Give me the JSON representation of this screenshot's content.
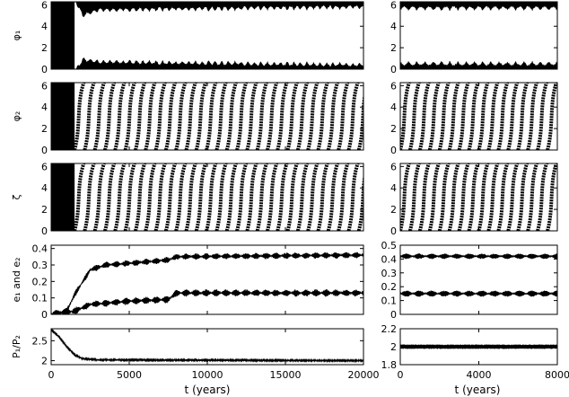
{
  "figure": {
    "xlabel_left": "t (years)",
    "xlabel_right": "t (years)"
  },
  "chart_data": [
    {
      "type": "scatter",
      "panel": "left",
      "row": 0,
      "ylabel": "φ₁",
      "xlim": [
        0,
        20000
      ],
      "ylim": [
        0,
        6.28
      ],
      "yticks": [
        "0",
        "2",
        "4",
        "6"
      ],
      "ytick_values": [
        0,
        2,
        4,
        6
      ],
      "xticks": [],
      "xtick_values": [],
      "pattern": "phi1",
      "description_points": [
        {
          "t": 0,
          "lower": 0.0,
          "upper": 6.28
        },
        {
          "t": 1500,
          "lower": 0.0,
          "upper": 6.28
        },
        {
          "t": 2000,
          "lower": 1.2,
          "upper": 4.7
        },
        {
          "t": 3000,
          "lower": 1.0,
          "upper": 5.2
        },
        {
          "t": 7500,
          "lower": 0.9,
          "upper": 5.3
        },
        {
          "t": 20000,
          "lower": 0.7,
          "upper": 5.5
        }
      ]
    },
    {
      "type": "scatter",
      "panel": "left",
      "row": 1,
      "ylabel": "φ₂",
      "xlim": [
        0,
        20000
      ],
      "ylim": [
        0,
        6.28
      ],
      "yticks": [
        "0",
        "2",
        "4",
        "6"
      ],
      "ytick_values": [
        0,
        2,
        4,
        6
      ],
      "xticks": [],
      "xtick_values": [],
      "pattern": "circulating",
      "circulation_period_years": 650
    },
    {
      "type": "scatter",
      "panel": "left",
      "row": 2,
      "ylabel": "ζ",
      "xlim": [
        0,
        20000
      ],
      "ylim": [
        0,
        6.28
      ],
      "yticks": [
        "0",
        "2",
        "4",
        "6"
      ],
      "ytick_values": [
        0,
        2,
        4,
        6
      ],
      "xticks": [],
      "xtick_values": [],
      "pattern": "circulating",
      "circulation_period_years": 650
    },
    {
      "type": "line",
      "panel": "left",
      "row": 3,
      "ylabel": "e₁ and e₂",
      "xlim": [
        0,
        20000
      ],
      "ylim": [
        0,
        0.42
      ],
      "yticks": [
        "0",
        "0.1",
        "0.2",
        "0.3",
        "0.4"
      ],
      "ytick_values": [
        0,
        0.1,
        0.2,
        0.3,
        0.4
      ],
      "xticks": [],
      "xtick_values": [],
      "series": [
        {
          "name": "",
          "x": [
            0,
            1000,
            1500,
            2500,
            3500,
            5000,
            7500,
            8000,
            20000
          ],
          "y": [
            0.0,
            0.02,
            0.12,
            0.27,
            0.3,
            0.31,
            0.33,
            0.35,
            0.36
          ],
          "osc_amp": 0.04
        },
        {
          "name": "",
          "x": [
            0,
            1500,
            2500,
            5000,
            7500,
            8000,
            20000
          ],
          "y": [
            0.0,
            0.02,
            0.06,
            0.08,
            0.09,
            0.13,
            0.13
          ],
          "osc_amp": 0.045
        }
      ]
    },
    {
      "type": "line",
      "panel": "left",
      "row": 4,
      "ylabel": "P₁/P₂",
      "xlim": [
        0,
        20000
      ],
      "ylim": [
        1.9,
        2.8
      ],
      "yticks": [
        "2",
        "2.5"
      ],
      "ytick_values": [
        2,
        2.5
      ],
      "xticks": [
        "0",
        "5000",
        "10000",
        "15000",
        "20000"
      ],
      "xtick_values": [
        0,
        5000,
        10000,
        15000,
        20000
      ],
      "series": [
        {
          "name": "",
          "x": [
            0,
            500,
            1000,
            1500,
            2000,
            3000,
            20000
          ],
          "y": [
            2.78,
            2.6,
            2.35,
            2.15,
            2.05,
            2.02,
            2.0
          ],
          "osc_amp": 0.04
        }
      ]
    },
    {
      "type": "scatter",
      "panel": "right",
      "row": 0,
      "ylabel": "",
      "xlim": [
        0,
        8000
      ],
      "ylim": [
        0,
        6.28
      ],
      "yticks": [
        "0",
        "2",
        "4",
        "6"
      ],
      "ytick_values": [
        0,
        2,
        4,
        6
      ],
      "xticks": [],
      "xtick_values": [],
      "pattern": "phi1",
      "description_points": [
        {
          "t": 0,
          "lower": 0.8,
          "upper": 5.4
        },
        {
          "t": 8000,
          "lower": 0.8,
          "upper": 5.4
        }
      ]
    },
    {
      "type": "scatter",
      "panel": "right",
      "row": 1,
      "ylabel": "",
      "xlim": [
        0,
        8000
      ],
      "ylim": [
        0,
        6.28
      ],
      "yticks": [
        "0",
        "2",
        "4",
        "6"
      ],
      "ytick_values": [
        0,
        2,
        4,
        6
      ],
      "xticks": [],
      "xtick_values": [],
      "pattern": "circulating",
      "circulation_period_years": 500
    },
    {
      "type": "scatter",
      "panel": "right",
      "row": 2,
      "ylabel": "",
      "xlim": [
        0,
        8000
      ],
      "ylim": [
        0,
        6.28
      ],
      "yticks": [
        "0",
        "2",
        "4",
        "6"
      ],
      "ytick_values": [
        0,
        2,
        4,
        6
      ],
      "xticks": [],
      "xtick_values": [],
      "pattern": "circulating",
      "circulation_period_years": 500
    },
    {
      "type": "line",
      "panel": "right",
      "row": 3,
      "ylabel": "",
      "xlim": [
        0,
        8000
      ],
      "ylim": [
        0,
        0.5
      ],
      "yticks": [
        "0",
        "0.1",
        "0.2",
        "0.3",
        "0.4",
        "0.5"
      ],
      "ytick_values": [
        0,
        0.1,
        0.2,
        0.3,
        0.4,
        0.5
      ],
      "xticks": [],
      "xtick_values": [],
      "series": [
        {
          "name": "",
          "x": [
            0,
            8000
          ],
          "y": [
            0.42,
            0.42
          ],
          "osc_amp": 0.04
        },
        {
          "name": "",
          "x": [
            0,
            8000
          ],
          "y": [
            0.15,
            0.15
          ],
          "osc_amp": 0.045
        }
      ]
    },
    {
      "type": "line",
      "panel": "right",
      "row": 4,
      "ylabel": "",
      "xlim": [
        0,
        8000
      ],
      "ylim": [
        1.8,
        2.2
      ],
      "yticks": [
        "1.8",
        "2",
        "2.2"
      ],
      "ytick_values": [
        1.8,
        2,
        2.2
      ],
      "xticks": [
        "0",
        "4000",
        "8000"
      ],
      "xtick_values": [
        0,
        4000,
        8000
      ],
      "series": [
        {
          "name": "",
          "x": [
            0,
            8000
          ],
          "y": [
            2.0,
            2.0
          ],
          "osc_amp": 0.05
        }
      ]
    }
  ]
}
